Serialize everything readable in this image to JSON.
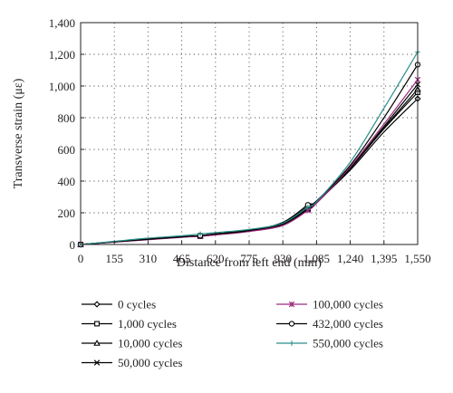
{
  "chart_data": {
    "type": "line",
    "title": "",
    "xlabel": "Distance from left end (mm)",
    "ylabel": "Transverse strain (με)",
    "xlim": [
      0,
      1550
    ],
    "ylim": [
      0,
      1400
    ],
    "x_ticks": [
      0,
      155,
      310,
      465,
      620,
      775,
      930,
      1085,
      1240,
      1395,
      1550
    ],
    "y_ticks": [
      0,
      200,
      400,
      600,
      800,
      1000,
      1200,
      1400
    ],
    "x_tick_labels": [
      "0",
      "155",
      "310",
      "465",
      "620",
      "775",
      "930",
      "1,085",
      "1,240",
      "1,395",
      "1,550"
    ],
    "y_tick_labels": [
      "0",
      "200",
      "400",
      "600",
      "800",
      "1,000",
      "1,200",
      "1,400"
    ],
    "grid": true,
    "legend_position": "bottom",
    "x": [
      0,
      155,
      310,
      465,
      550,
      620,
      775,
      930,
      1045,
      1085,
      1240,
      1395,
      1550
    ],
    "series": [
      {
        "name": "0 cycles",
        "marker": "diamond",
        "color": "#000000",
        "values": [
          0,
          18,
          35,
          50,
          55,
          68,
          90,
          135,
          240,
          270,
          470,
          710,
          920
        ]
      },
      {
        "name": "1,000 cycles",
        "marker": "square",
        "color": "#000000",
        "values": [
          0,
          16,
          32,
          48,
          52,
          62,
          85,
          125,
          222,
          265,
          480,
          730,
          960
        ]
      },
      {
        "name": "10,000 cycles",
        "marker": "triangle",
        "color": "#000000",
        "values": [
          0,
          16,
          33,
          48,
          54,
          64,
          86,
          128,
          226,
          262,
          482,
          735,
          980
        ]
      },
      {
        "name": "50,000 cycles",
        "marker": "x",
        "color": "#000000",
        "values": [
          0,
          17,
          33,
          48,
          55,
          66,
          88,
          132,
          230,
          266,
          485,
          745,
          1010
        ]
      },
      {
        "name": "100,000 cycles",
        "marker": "asterisk",
        "color": "#9c2a7f",
        "values": [
          0,
          15,
          30,
          45,
          52,
          60,
          82,
          120,
          215,
          260,
          490,
          760,
          1040
        ]
      },
      {
        "name": "432,000 cycles",
        "marker": "circle",
        "color": "#000000",
        "values": [
          0,
          17,
          33,
          48,
          56,
          66,
          88,
          140,
          250,
          275,
          500,
          800,
          1135
        ]
      },
      {
        "name": "550,000 cycles",
        "marker": "plus",
        "color": "#2a8f8a",
        "values": [
          0,
          20,
          40,
          55,
          66,
          75,
          95,
          135,
          235,
          270,
          520,
          860,
          1215
        ]
      }
    ]
  }
}
